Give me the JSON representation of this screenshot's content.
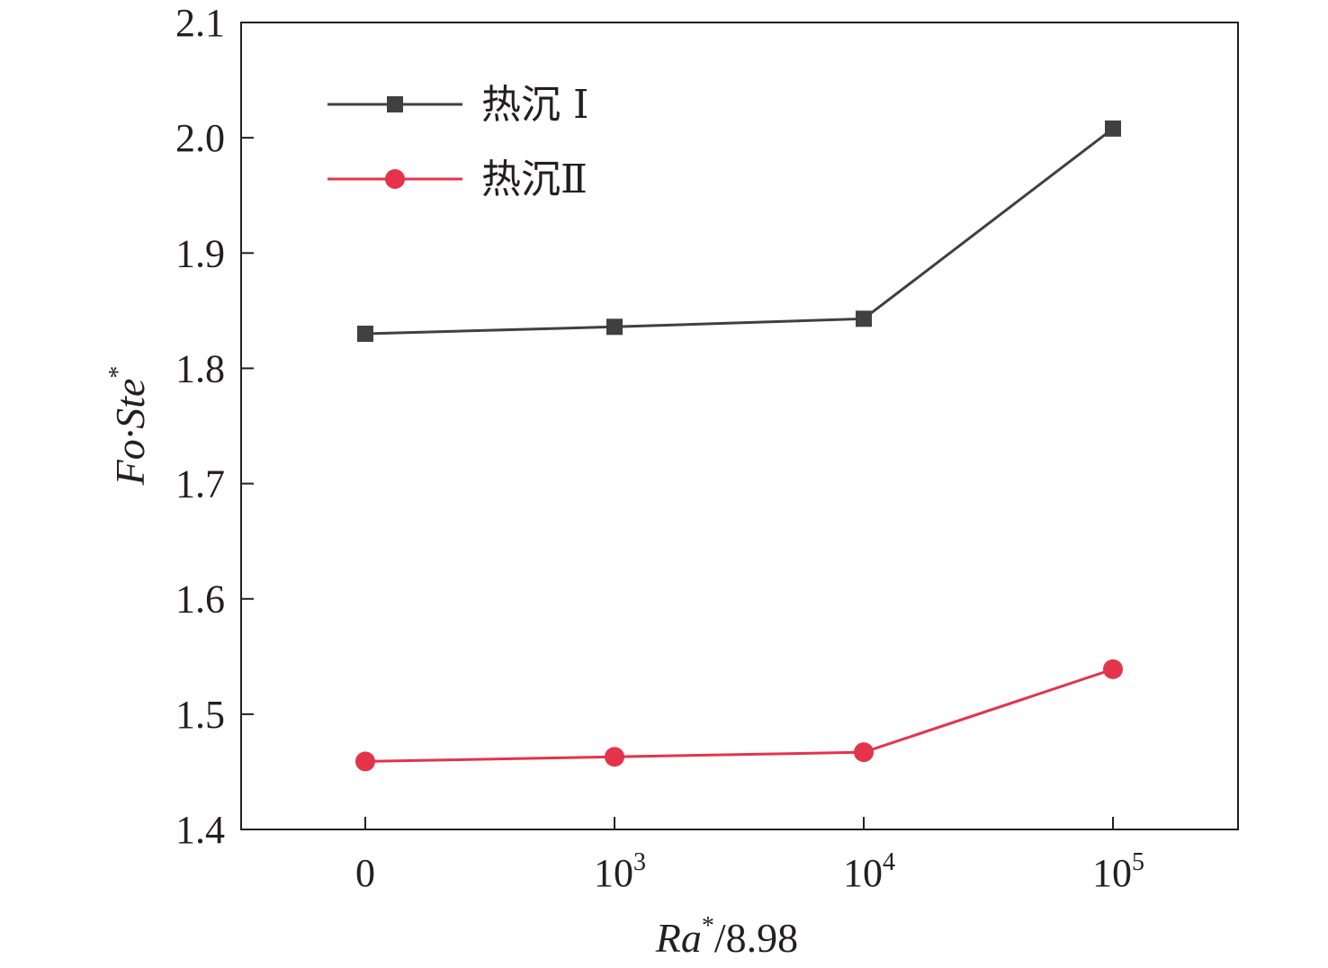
{
  "chart_data": {
    "type": "line",
    "categories": [
      "0",
      "10^3",
      "10^4",
      "10^5"
    ],
    "x_tick_labels": [
      {
        "base": "0",
        "exp": ""
      },
      {
        "base": "10",
        "exp": "3"
      },
      {
        "base": "10",
        "exp": "4"
      },
      {
        "base": "10",
        "exp": "5"
      }
    ],
    "xlabel": {
      "main": "Ra",
      "sup": "*",
      "rest": "/8.98"
    },
    "ylabel": {
      "main": "Fo·Ste",
      "sup": "*"
    },
    "ylim": [
      1.4,
      2.1
    ],
    "y_ticks": [
      "1.4",
      "1.5",
      "1.6",
      "1.7",
      "1.8",
      "1.9",
      "2.0",
      "2.1"
    ],
    "legend_position": "top-left",
    "grid": false,
    "series": [
      {
        "name": "热沉 I",
        "marker": "square",
        "color": "#404040",
        "values": [
          1.83,
          1.836,
          1.843,
          2.008
        ]
      },
      {
        "name": "热沉Ⅱ",
        "marker": "circle",
        "color": "#e5334b",
        "values": [
          1.459,
          1.463,
          1.467,
          1.539
        ]
      }
    ]
  }
}
